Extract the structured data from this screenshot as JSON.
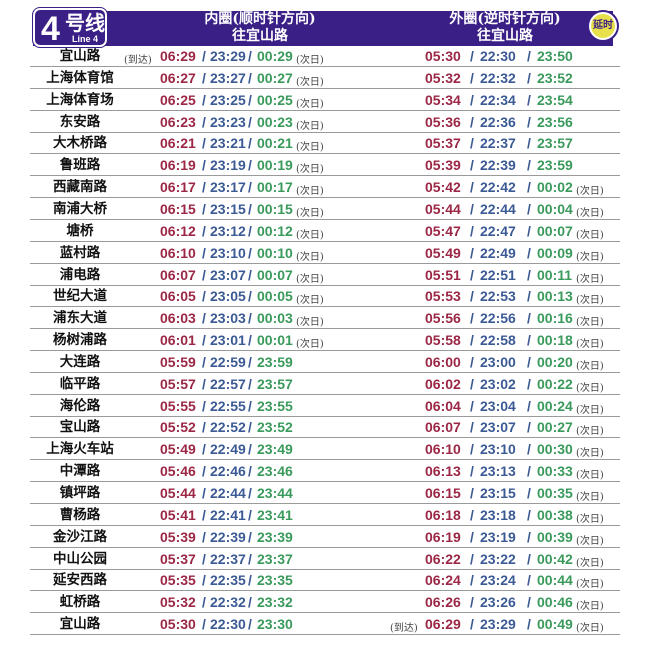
{
  "header": {
    "line_number": "4",
    "line_cn": "号线",
    "line_en": "Line 4",
    "inner": {
      "title": "内圈(顺时针方向)",
      "dest": "往宜山路"
    },
    "outer": {
      "title": "外圈(逆时针方向)",
      "dest": "往宜山路"
    },
    "late_badge": "延时"
  },
  "colors": {
    "header": "#3a1f86",
    "first": "#9b2745",
    "last": "#3b5a94",
    "late": "#3a9a5c"
  },
  "labels": {
    "arrive": "(到达)",
    "next_day": "(次日)",
    "sep": "/"
  },
  "rows": [
    {
      "station": "宜山路",
      "inner": [
        "06:29",
        "23:29",
        "00:29"
      ],
      "inner_next": true,
      "inner_arrive": true,
      "outer": [
        "05:30",
        "22:30",
        "23:50"
      ],
      "outer_next": false
    },
    {
      "station": "上海体育馆",
      "inner": [
        "06:27",
        "23:27",
        "00:27"
      ],
      "inner_next": true,
      "outer": [
        "05:32",
        "22:32",
        "23:52"
      ],
      "outer_next": false
    },
    {
      "station": "上海体育场",
      "inner": [
        "06:25",
        "23:25",
        "00:25"
      ],
      "inner_next": true,
      "outer": [
        "05:34",
        "22:34",
        "23:54"
      ],
      "outer_next": false
    },
    {
      "station": "东安路",
      "inner": [
        "06:23",
        "23:23",
        "00:23"
      ],
      "inner_next": true,
      "outer": [
        "05:36",
        "22:36",
        "23:56"
      ],
      "outer_next": false
    },
    {
      "station": "大木桥路",
      "inner": [
        "06:21",
        "23:21",
        "00:21"
      ],
      "inner_next": true,
      "outer": [
        "05:37",
        "22:37",
        "23:57"
      ],
      "outer_next": false
    },
    {
      "station": "鲁班路",
      "inner": [
        "06:19",
        "23:19",
        "00:19"
      ],
      "inner_next": true,
      "outer": [
        "05:39",
        "22:39",
        "23:59"
      ],
      "outer_next": false
    },
    {
      "station": "西藏南路",
      "inner": [
        "06:17",
        "23:17",
        "00:17"
      ],
      "inner_next": true,
      "outer": [
        "05:42",
        "22:42",
        "00:02"
      ],
      "outer_next": true
    },
    {
      "station": "南浦大桥",
      "inner": [
        "06:15",
        "23:15",
        "00:15"
      ],
      "inner_next": true,
      "outer": [
        "05:44",
        "22:44",
        "00:04"
      ],
      "outer_next": true
    },
    {
      "station": "塘桥",
      "inner": [
        "06:12",
        "23:12",
        "00:12"
      ],
      "inner_next": true,
      "outer": [
        "05:47",
        "22:47",
        "00:07"
      ],
      "outer_next": true
    },
    {
      "station": "蓝村路",
      "inner": [
        "06:10",
        "23:10",
        "00:10"
      ],
      "inner_next": true,
      "outer": [
        "05:49",
        "22:49",
        "00:09"
      ],
      "outer_next": true
    },
    {
      "station": "浦电路",
      "inner": [
        "06:07",
        "23:07",
        "00:07"
      ],
      "inner_next": true,
      "outer": [
        "05:51",
        "22:51",
        "00:11"
      ],
      "outer_next": true
    },
    {
      "station": "世纪大道",
      "inner": [
        "06:05",
        "23:05",
        "00:05"
      ],
      "inner_next": true,
      "outer": [
        "05:53",
        "22:53",
        "00:13"
      ],
      "outer_next": true
    },
    {
      "station": "浦东大道",
      "inner": [
        "06:03",
        "23:03",
        "00:03"
      ],
      "inner_next": true,
      "outer": [
        "05:56",
        "22:56",
        "00:16"
      ],
      "outer_next": true
    },
    {
      "station": "杨树浦路",
      "inner": [
        "06:01",
        "23:01",
        "00:01"
      ],
      "inner_next": true,
      "outer": [
        "05:58",
        "22:58",
        "00:18"
      ],
      "outer_next": true
    },
    {
      "station": "大连路",
      "inner": [
        "05:59",
        "22:59",
        "23:59"
      ],
      "inner_next": false,
      "outer": [
        "06:00",
        "23:00",
        "00:20"
      ],
      "outer_next": true
    },
    {
      "station": "临平路",
      "inner": [
        "05:57",
        "22:57",
        "23:57"
      ],
      "inner_next": false,
      "outer": [
        "06:02",
        "23:02",
        "00:22"
      ],
      "outer_next": true
    },
    {
      "station": "海伦路",
      "inner": [
        "05:55",
        "22:55",
        "23:55"
      ],
      "inner_next": false,
      "outer": [
        "06:04",
        "23:04",
        "00:24"
      ],
      "outer_next": true
    },
    {
      "station": "宝山路",
      "inner": [
        "05:52",
        "22:52",
        "23:52"
      ],
      "inner_next": false,
      "outer": [
        "06:07",
        "23:07",
        "00:27"
      ],
      "outer_next": true
    },
    {
      "station": "上海火车站",
      "inner": [
        "05:49",
        "22:49",
        "23:49"
      ],
      "inner_next": false,
      "outer": [
        "06:10",
        "23:10",
        "00:30"
      ],
      "outer_next": true
    },
    {
      "station": "中潭路",
      "inner": [
        "05:46",
        "22:46",
        "23:46"
      ],
      "inner_next": false,
      "outer": [
        "06:13",
        "23:13",
        "00:33"
      ],
      "outer_next": true
    },
    {
      "station": "镇坪路",
      "inner": [
        "05:44",
        "22:44",
        "23:44"
      ],
      "inner_next": false,
      "outer": [
        "06:15",
        "23:15",
        "00:35"
      ],
      "outer_next": true
    },
    {
      "station": "曹杨路",
      "inner": [
        "05:41",
        "22:41",
        "23:41"
      ],
      "inner_next": false,
      "outer": [
        "06:18",
        "23:18",
        "00:38"
      ],
      "outer_next": true
    },
    {
      "station": "金沙江路",
      "inner": [
        "05:39",
        "22:39",
        "23:39"
      ],
      "inner_next": false,
      "outer": [
        "06:19",
        "23:19",
        "00:39"
      ],
      "outer_next": true
    },
    {
      "station": "中山公园",
      "inner": [
        "05:37",
        "22:37",
        "23:37"
      ],
      "inner_next": false,
      "outer": [
        "06:22",
        "23:22",
        "00:42"
      ],
      "outer_next": true
    },
    {
      "station": "延安西路",
      "inner": [
        "05:35",
        "22:35",
        "23:35"
      ],
      "inner_next": false,
      "outer": [
        "06:24",
        "23:24",
        "00:44"
      ],
      "outer_next": true
    },
    {
      "station": "虹桥路",
      "inner": [
        "05:32",
        "22:32",
        "23:32"
      ],
      "inner_next": false,
      "outer": [
        "06:26",
        "23:26",
        "00:46"
      ],
      "outer_next": true
    },
    {
      "station": "宜山路",
      "inner": [
        "05:30",
        "22:30",
        "23:30"
      ],
      "inner_next": false,
      "outer": [
        "06:29",
        "23:29",
        "00:49"
      ],
      "outer_next": true,
      "outer_arrive": true
    }
  ]
}
